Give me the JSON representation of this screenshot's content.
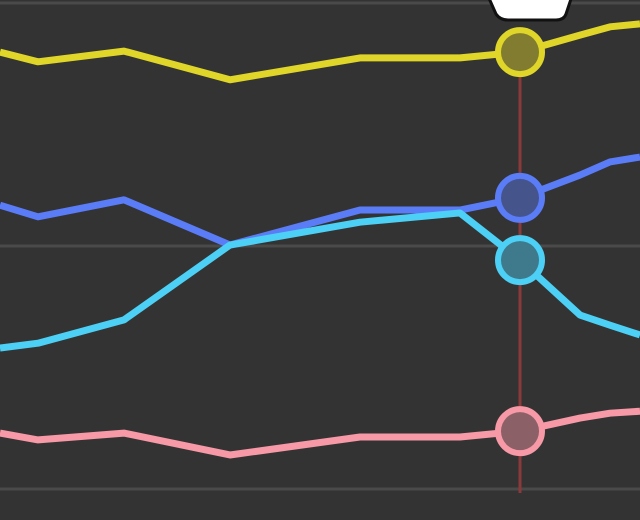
{
  "chart_data": {
    "type": "line",
    "x": [
      0,
      38,
      124,
      230,
      360,
      460,
      520,
      580,
      610,
      640
    ],
    "xlim": [
      0,
      640
    ],
    "ylim": [
      0,
      100
    ],
    "yticks": [
      0,
      50,
      100
    ],
    "grid": true,
    "series": [
      {
        "color": "#e0d62a",
        "values": [
          89.9,
          87.9,
          90.1,
          84.2,
          88.7,
          88.7,
          89.9,
          93.4,
          95.1,
          95.7
        ]
      },
      {
        "color": "#5b7cf7",
        "values": [
          58.4,
          56.0,
          59.5,
          50.2,
          57.4,
          57.4,
          59.9,
          64.6,
          67.3,
          68.3
        ]
      },
      {
        "color": "#4dd0f5",
        "values": [
          29.0,
          30.0,
          34.8,
          50.2,
          54.9,
          56.8,
          47.1,
          35.8,
          33.7,
          31.7
        ]
      },
      {
        "color": "#f799a6",
        "values": [
          11.5,
          10.1,
          11.5,
          7.0,
          10.7,
          10.7,
          11.9,
          14.6,
          15.6,
          16.0
        ]
      }
    ]
  }
}
